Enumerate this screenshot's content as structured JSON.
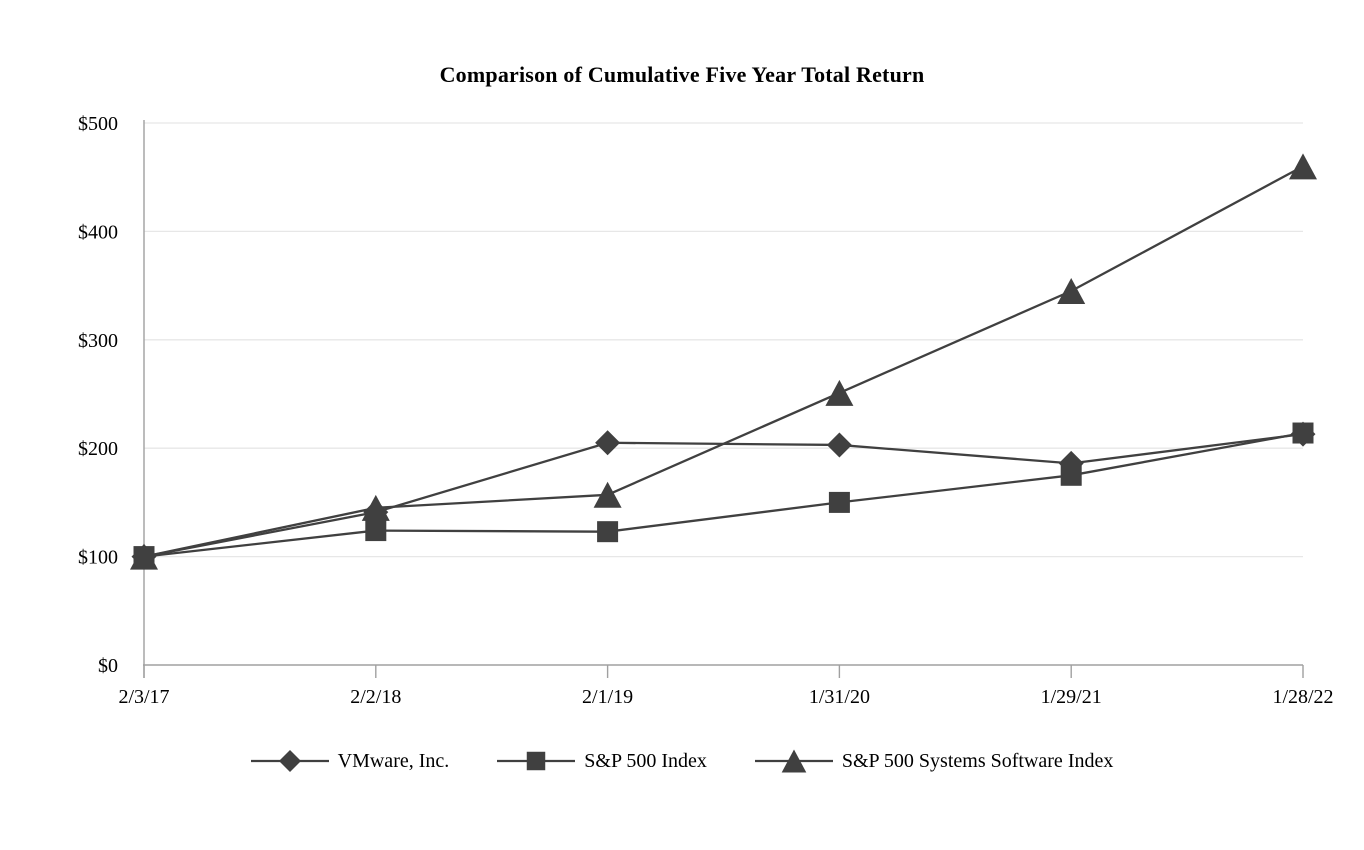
{
  "chart_data": {
    "type": "line",
    "title": "Comparison of Cumulative Five Year Total Return",
    "categories": [
      "2/3/17",
      "2/2/18",
      "2/1/19",
      "1/31/20",
      "1/29/21",
      "1/28/22"
    ],
    "series": [
      {
        "name": "VMware, Inc.",
        "marker": "diamond",
        "values": [
          100,
          141,
          205,
          203,
          186,
          213
        ]
      },
      {
        "name": "S&P 500 Index",
        "marker": "square",
        "values": [
          100,
          124,
          123,
          150,
          175,
          214
        ]
      },
      {
        "name": "S&P 500 Systems Software Index",
        "marker": "triangle",
        "values": [
          100,
          145,
          157,
          251,
          345,
          460
        ]
      }
    ],
    "xlabel": "",
    "ylabel": "",
    "ylim": [
      0,
      500
    ],
    "y_ticks": [
      "$0",
      "$100",
      "$200",
      "$300",
      "$400",
      "$500"
    ],
    "grid": "horizontal",
    "legend_position": "bottom",
    "colors": {
      "series": "#404040",
      "gridline": "#e7e7e7",
      "axis": "#a0a0a0",
      "text": "#000000",
      "background": "#ffffff"
    }
  }
}
